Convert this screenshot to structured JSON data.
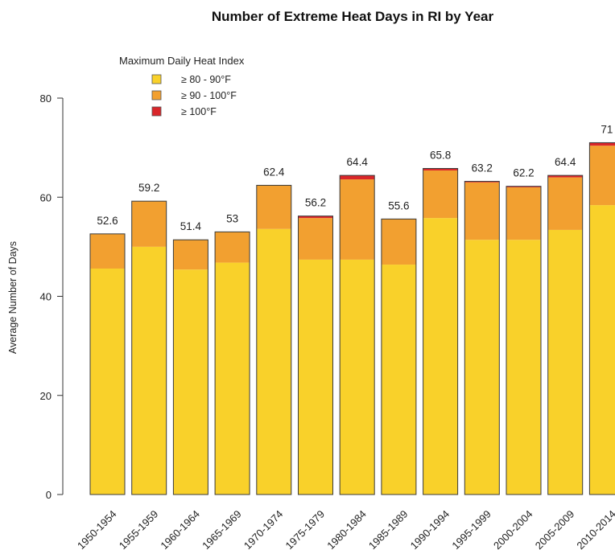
{
  "chart_data": {
    "type": "bar",
    "stacked": true,
    "title": "Number of Extreme Heat Days in RI by Year",
    "ylabel": "Average Number of Days",
    "xlabel": "",
    "ylim": [
      0,
      80
    ],
    "yticks": [
      0,
      20,
      40,
      60,
      80
    ],
    "legend": {
      "title": "Maximum Daily Heat Index",
      "placement": "top-left",
      "entries": [
        "≥ 80 - 90°F",
        "≥ 90 - 100°F",
        "≥ 100°F"
      ]
    },
    "categories": [
      "1950-1954",
      "1955-1959",
      "1960-1964",
      "1965-1969",
      "1970-1974",
      "1975-1979",
      "1980-1984",
      "1985-1989",
      "1990-1994",
      "1995-1999",
      "2000-2004",
      "2005-2009",
      "2010-2014"
    ],
    "series": [
      {
        "name": "≥ 80 - 90°F",
        "color": "#F9D12A",
        "values": [
          45.6,
          50.0,
          45.4,
          46.8,
          53.6,
          47.4,
          47.4,
          46.4,
          55.8,
          51.4,
          51.4,
          53.4,
          58.4
        ]
      },
      {
        "name": "≥ 90 - 100°F",
        "color": "#F2A030",
        "values": [
          7.0,
          9.2,
          6.0,
          6.2,
          8.8,
          8.4,
          16.2,
          9.2,
          9.6,
          11.6,
          10.6,
          10.6,
          12.0
        ]
      },
      {
        "name": "≥ 100°F",
        "color": "#D9262A",
        "values": [
          0,
          0,
          0,
          0,
          0,
          0.4,
          0.8,
          0,
          0.4,
          0.2,
          0.2,
          0.4,
          0.6
        ]
      }
    ],
    "totals": [
      "52.6",
      "59.2",
      "51.4",
      "53",
      "62.4",
      "56.2",
      "64.4",
      "55.6",
      "65.8",
      "63.2",
      "62.2",
      "64.4",
      "71"
    ]
  }
}
